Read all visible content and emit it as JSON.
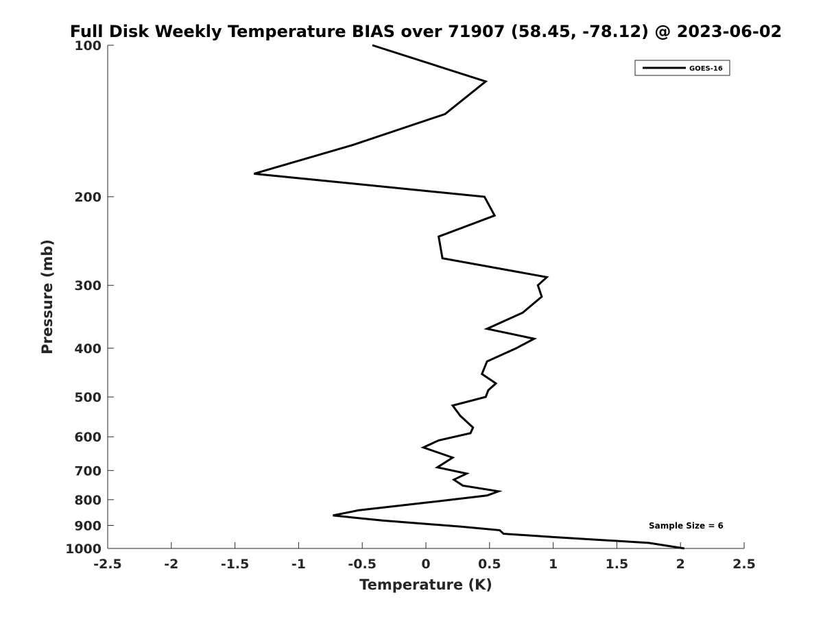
{
  "chart_data": {
    "type": "line",
    "title": "Full Disk Weekly Temperature BIAS over 71907 (58.45, -78.12) @ 2023-06-02",
    "xlabel": "Temperature (K)",
    "ylabel": "Pressure (mb)",
    "xlim": [
      -2.5,
      2.5
    ],
    "ylim": [
      100,
      1000
    ],
    "y_scale": "log",
    "y_reversed": true,
    "grid": false,
    "x_ticks": [
      -2.5,
      -2,
      -1.5,
      -1,
      -0.5,
      0,
      0.5,
      1,
      1.5,
      2,
      2.5
    ],
    "x_tick_labels": [
      "-2.5",
      "-2",
      "-1.5",
      "-1",
      "-0.5",
      "0",
      "0.5",
      "1",
      "1.5",
      "2",
      "2.5"
    ],
    "y_ticks": [
      100,
      200,
      300,
      400,
      500,
      600,
      700,
      800,
      900,
      1000
    ],
    "y_tick_labels": [
      "100",
      "200",
      "300",
      "400",
      "500",
      "600",
      "700",
      "800",
      "900",
      "1000"
    ],
    "legend": {
      "placement": "top-right",
      "entries": [
        "GOES-16"
      ]
    },
    "annotation": "Sample Size = 6",
    "series": [
      {
        "name": "GOES-16",
        "color": "#000000",
        "points": [
          [
            -0.42,
            100
          ],
          [
            0.47,
            118
          ],
          [
            0.15,
            137
          ],
          [
            -0.58,
            158
          ],
          [
            -1.35,
            180
          ],
          [
            0.46,
            200
          ],
          [
            0.54,
            218
          ],
          [
            0.1,
            240
          ],
          [
            0.13,
            265
          ],
          [
            0.95,
            289
          ],
          [
            0.88,
            300
          ],
          [
            0.91,
            316
          ],
          [
            0.76,
            340
          ],
          [
            0.48,
            366
          ],
          [
            0.85,
            383
          ],
          [
            0.71,
            400
          ],
          [
            0.48,
            425
          ],
          [
            0.44,
            450
          ],
          [
            0.55,
            470
          ],
          [
            0.49,
            485
          ],
          [
            0.47,
            500
          ],
          [
            0.21,
            520
          ],
          [
            0.27,
            545
          ],
          [
            0.37,
            575
          ],
          [
            0.35,
            590
          ],
          [
            0.1,
            610
          ],
          [
            -0.02,
            630
          ],
          [
            0.21,
            660
          ],
          [
            0.09,
            690
          ],
          [
            0.32,
            710
          ],
          [
            0.22,
            730
          ],
          [
            0.29,
            750
          ],
          [
            0.57,
            770
          ],
          [
            0.48,
            785
          ],
          [
            0.02,
            810
          ],
          [
            -0.53,
            840
          ],
          [
            -0.73,
            860
          ],
          [
            -0.34,
            880
          ],
          [
            0.28,
            905
          ],
          [
            0.58,
            920
          ],
          [
            0.61,
            935
          ],
          [
            1.02,
            950
          ],
          [
            1.75,
            975
          ],
          [
            2.03,
            1000
          ]
        ]
      }
    ]
  }
}
